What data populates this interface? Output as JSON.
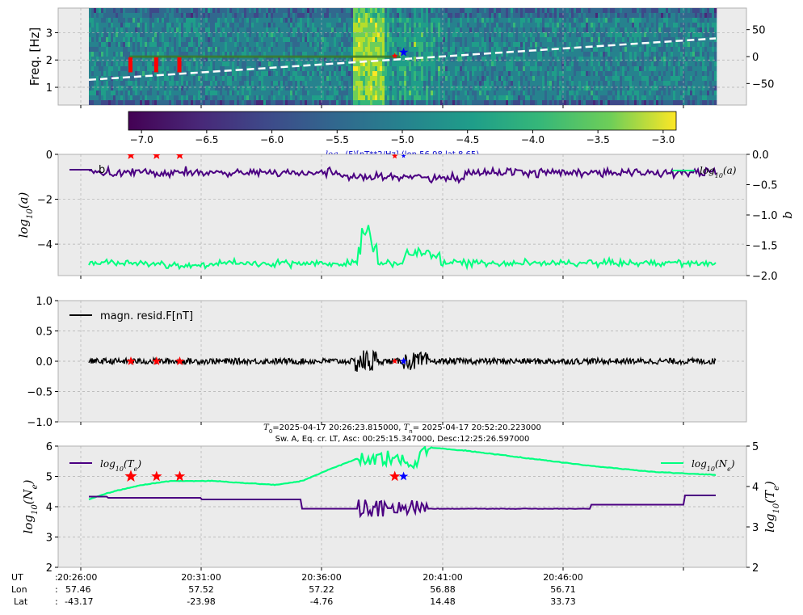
{
  "chart_data": [
    {
      "type": "heatmap",
      "ylabel": "Freq. [Hz]",
      "ylim": [
        0.35,
        3.9
      ],
      "yticks": [
        "1",
        "2",
        "3"
      ],
      "right_ticks": [
        "50",
        "0",
        "−50"
      ],
      "right_ylim": [
        -90,
        90
      ],
      "colorbar": {
        "ticks": [
          "−7.0",
          "−6.5",
          "−6.0",
          "−5.5",
          "−5.0",
          "−4.5",
          "−4.0",
          "−3.5",
          "−3.0"
        ],
        "range": [
          -7.1,
          -2.9
        ],
        "label_math": "log",
        "label_sub": "10",
        "label_rest": "(F)[nT**2/Hz] (lon 56.98 lat 8.65)",
        "colormap": "viridis"
      },
      "lat_track": {
        "x": [
          0,
          1
        ],
        "lat": [
          -43.17,
          33.73
        ]
      },
      "events": [
        {
          "x": 0.067,
          "color": "red"
        },
        {
          "x": 0.108,
          "color": "red"
        },
        {
          "x": 0.145,
          "color": "red"
        },
        {
          "x": 0.488,
          "color": "red"
        },
        {
          "x": 0.502,
          "color": "blue"
        }
      ],
      "grid": true
    },
    {
      "type": "line",
      "ylabel_math": "log",
      "ylabel_sub": "10",
      "ylabel_rest": "(a)",
      "right_label": "b",
      "ylim": [
        0,
        -5.4
      ],
      "yticks": [
        "0",
        "−2",
        "−4"
      ],
      "right_ylim": [
        0,
        -2.0
      ],
      "right_ticks": [
        "0.0",
        "−0.5",
        "−1.0",
        "−1.5",
        "−2.0"
      ],
      "series": [
        {
          "name": "b",
          "color": "#4b0082",
          "mean_right": -0.3
        },
        {
          "name_math": "log",
          "name_sub": "10",
          "name_rest": "(a)",
          "color": "#00ff7f",
          "mean": -4.85
        }
      ],
      "grid": true
    },
    {
      "type": "line",
      "ylim": [
        -1.0,
        1.0
      ],
      "yticks": [
        "1.0",
        "0.5",
        "0.0",
        "−0.5",
        "−1.0"
      ],
      "series": [
        {
          "name": "magn. resid.F[nT]",
          "color": "#000000",
          "mean": 0.0,
          "amplitude": 0.05
        }
      ],
      "grid": true
    },
    {
      "type": "line",
      "title_line1": "=2025-04-17 20:26:23.815000, ",
      "title_t0": "T",
      "title_t0_sub": "0",
      "title_tn": "T",
      "title_tn_sub": "n",
      "title_line1b": "= 2025-04-17 20:52:20.223000",
      "title_line2": "Sw. A, Eq. cr. LT, Asc: 00:25:15.347000, Desc:12:25:26.597000",
      "ylabel_math": "log",
      "ylabel_sub": "10",
      "ylabel_rest": "(N",
      "ylabel_sub2": "e",
      "right_ylabel_rest": "(T",
      "right_ylabel_sub2": "e",
      "ylim": [
        2,
        6
      ],
      "yticks": [
        "6",
        "5",
        "4",
        "3",
        "2"
      ],
      "right_ylim": [
        2,
        5
      ],
      "right_ticks": [
        "5",
        "4",
        "3",
        "2"
      ],
      "series": [
        {
          "legend_sub": "e",
          "legend_var": "T",
          "color": "#4b0082"
        },
        {
          "legend_sub": "e",
          "legend_var": "N",
          "color": "#00ff7f"
        }
      ],
      "grid": true
    }
  ],
  "x_axis": {
    "row_labels": [
      "UT",
      "Lon",
      "Lat"
    ],
    "colon": ":",
    "ticks": [
      {
        "ut": "20:26:00",
        "lon": "57.46",
        "lat": "-43.17"
      },
      {
        "ut": "20:31:00",
        "lon": "57.52",
        "lat": "-23.98"
      },
      {
        "ut": "20:36:00",
        "lon": "57.22",
        "lat": "-4.76"
      },
      {
        "ut": "20:41:00",
        "lon": "56.88",
        "lat": "14.48"
      },
      {
        "ut": "20:46:00",
        "lon": "56.71",
        "lat": "33.73"
      }
    ]
  }
}
